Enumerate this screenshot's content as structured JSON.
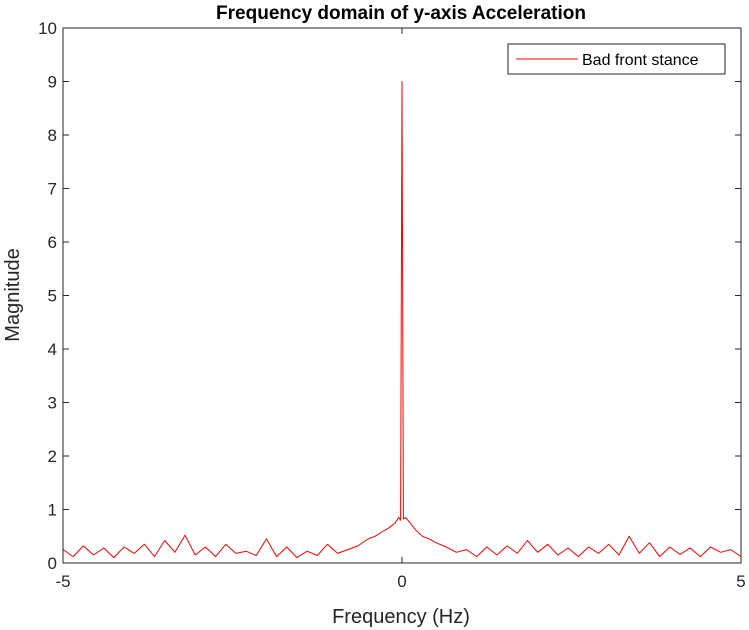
{
  "chart_data": {
    "type": "line",
    "title": "Frequency domain of y-axis Acceleration",
    "xlabel": "Frequency (Hz)",
    "ylabel": "Magnitude",
    "xlim": [
      -5,
      5
    ],
    "ylim": [
      0,
      10
    ],
    "x_ticks": [
      -5,
      0,
      5
    ],
    "y_ticks": [
      0,
      1,
      2,
      3,
      4,
      5,
      6,
      7,
      8,
      9,
      10
    ],
    "grid": false,
    "legend_position": "top-right",
    "series": [
      {
        "name": "Bad front stance",
        "color": "#ff0000",
        "x": [
          -5,
          -4.85,
          -4.7,
          -4.55,
          -4.4,
          -4.25,
          -4.1,
          -3.95,
          -3.8,
          -3.65,
          -3.5,
          -3.35,
          -3.2,
          -3.05,
          -2.9,
          -2.75,
          -2.6,
          -2.45,
          -2.3,
          -2.15,
          -2.0,
          -1.85,
          -1.7,
          -1.55,
          -1.4,
          -1.25,
          -1.1,
          -0.95,
          -0.8,
          -0.65,
          -0.5,
          -0.4,
          -0.3,
          -0.2,
          -0.1,
          -0.05,
          -0.02,
          0,
          0.02,
          0.05,
          0.1,
          0.2,
          0.3,
          0.4,
          0.5,
          0.65,
          0.8,
          0.95,
          1.1,
          1.25,
          1.4,
          1.55,
          1.7,
          1.85,
          2.0,
          2.15,
          2.3,
          2.45,
          2.6,
          2.75,
          2.9,
          3.05,
          3.2,
          3.35,
          3.5,
          3.65,
          3.8,
          3.95,
          4.1,
          4.25,
          4.4,
          4.55,
          4.7,
          4.85,
          5
        ],
        "y": [
          0.25,
          0.12,
          0.32,
          0.15,
          0.28,
          0.1,
          0.3,
          0.18,
          0.35,
          0.12,
          0.42,
          0.2,
          0.52,
          0.15,
          0.3,
          0.12,
          0.35,
          0.18,
          0.22,
          0.14,
          0.45,
          0.12,
          0.3,
          0.1,
          0.22,
          0.14,
          0.35,
          0.18,
          0.25,
          0.32,
          0.45,
          0.5,
          0.58,
          0.65,
          0.75,
          0.85,
          0.8,
          9.0,
          0.82,
          0.85,
          0.78,
          0.62,
          0.5,
          0.45,
          0.38,
          0.3,
          0.2,
          0.25,
          0.12,
          0.3,
          0.15,
          0.32,
          0.18,
          0.42,
          0.2,
          0.35,
          0.15,
          0.28,
          0.12,
          0.3,
          0.18,
          0.35,
          0.15,
          0.5,
          0.18,
          0.38,
          0.12,
          0.3,
          0.16,
          0.28,
          0.12,
          0.3,
          0.2,
          0.25,
          0.12
        ]
      }
    ]
  }
}
